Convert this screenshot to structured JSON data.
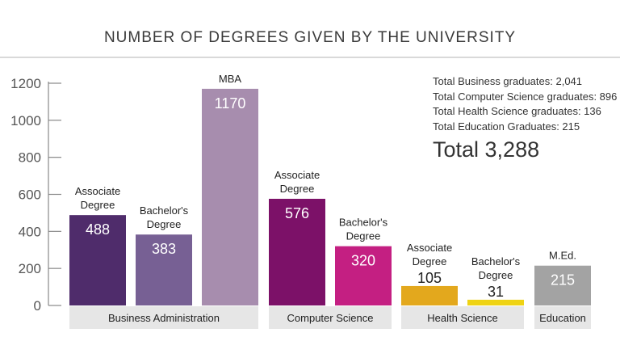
{
  "chart_data": {
    "type": "bar",
    "title": "NUMBER OF DEGREES GIVEN BY THE UNIVERSITY",
    "ylim": [
      0,
      1200
    ],
    "yticks": [
      0,
      200,
      400,
      600,
      800,
      1000,
      1200
    ],
    "groups": [
      {
        "name": "Business Administration",
        "bars": [
          {
            "label": "Associate Degree",
            "value": 488,
            "color": "#4f2c6b"
          },
          {
            "label": "Bachelor's Degree",
            "value": 383,
            "color": "#776094"
          },
          {
            "label": "MBA",
            "value": 1170,
            "color": "#a78dae"
          }
        ]
      },
      {
        "name": "Computer Science",
        "bars": [
          {
            "label": "Associate Degree",
            "value": 576,
            "color": "#7c1168"
          },
          {
            "label": "Bachelor's Degree",
            "value": 320,
            "color": "#c41f82"
          }
        ]
      },
      {
        "name": "Health Science",
        "bars": [
          {
            "label": "Associate Degree",
            "value": 105,
            "color": "#e3a81d"
          },
          {
            "label": "Bachelor's Degree",
            "value": 31,
            "color": "#efd314"
          }
        ]
      },
      {
        "name": "Education",
        "bars": [
          {
            "label": "M.Ed.",
            "value": 215,
            "color": "#a3a3a3"
          }
        ]
      }
    ]
  },
  "summary": {
    "lines": [
      "Total Business graduates: 2,041",
      "Total Computer Science graduates: 896",
      "Total Health Science graduates: 136",
      "Total Education Graduates: 215"
    ],
    "total": "Total 3,288"
  }
}
